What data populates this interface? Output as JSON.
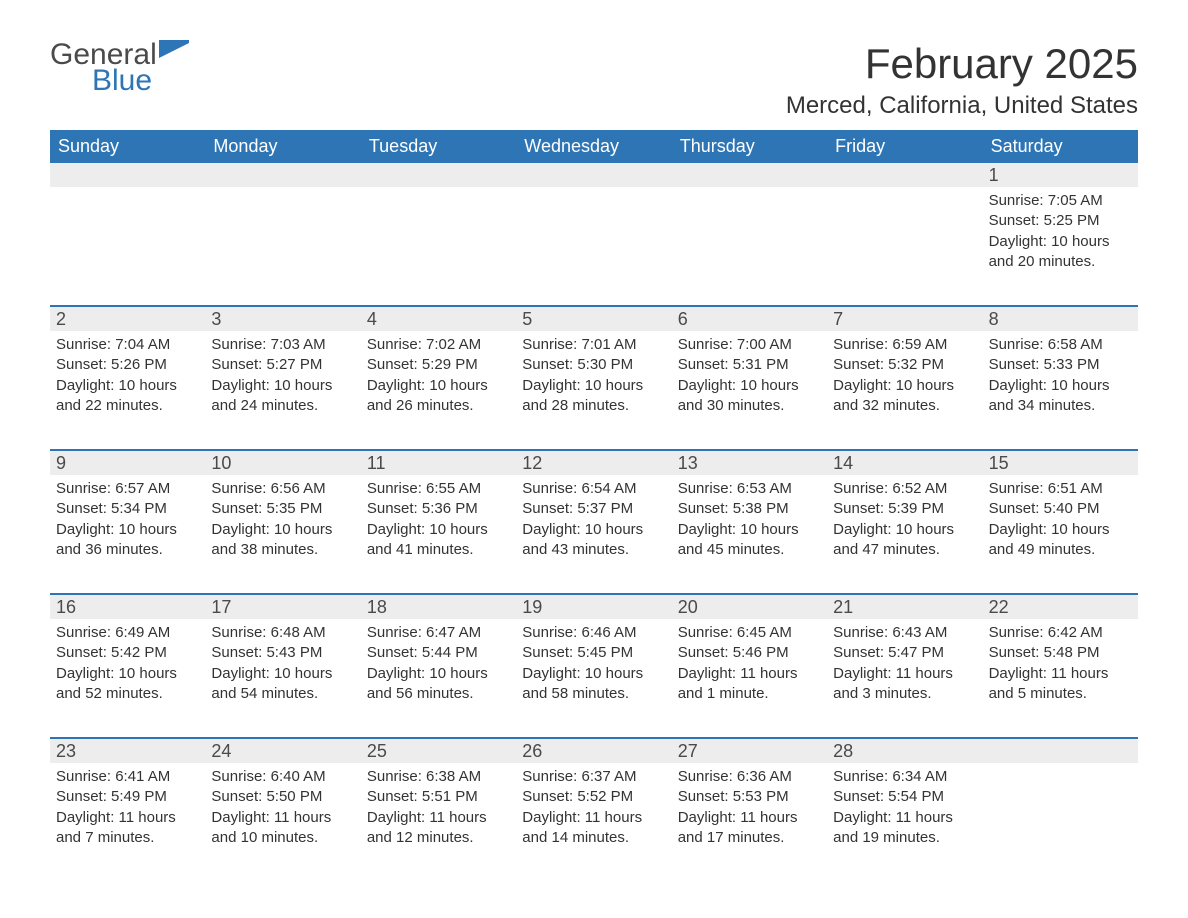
{
  "brand": {
    "general": "General",
    "blue": "Blue",
    "logo_color": "#2e75b6",
    "text_color": "#4a4a4a"
  },
  "header": {
    "month_title": "February 2025",
    "location": "Merced, California, United States"
  },
  "colors": {
    "header_bg": "#2e75b6",
    "header_text": "#ffffff",
    "daynum_bg": "#ededed",
    "border": "#2e75b6",
    "body_text": "#333333",
    "page_bg": "#ffffff"
  },
  "weekdays": [
    "Sunday",
    "Monday",
    "Tuesday",
    "Wednesday",
    "Thursday",
    "Friday",
    "Saturday"
  ],
  "weeks": [
    [
      null,
      null,
      null,
      null,
      null,
      null,
      {
        "n": "1",
        "sunrise": "Sunrise: 7:05 AM",
        "sunset": "Sunset: 5:25 PM",
        "daylight": "Daylight: 10 hours and 20 minutes."
      }
    ],
    [
      {
        "n": "2",
        "sunrise": "Sunrise: 7:04 AM",
        "sunset": "Sunset: 5:26 PM",
        "daylight": "Daylight: 10 hours and 22 minutes."
      },
      {
        "n": "3",
        "sunrise": "Sunrise: 7:03 AM",
        "sunset": "Sunset: 5:27 PM",
        "daylight": "Daylight: 10 hours and 24 minutes."
      },
      {
        "n": "4",
        "sunrise": "Sunrise: 7:02 AM",
        "sunset": "Sunset: 5:29 PM",
        "daylight": "Daylight: 10 hours and 26 minutes."
      },
      {
        "n": "5",
        "sunrise": "Sunrise: 7:01 AM",
        "sunset": "Sunset: 5:30 PM",
        "daylight": "Daylight: 10 hours and 28 minutes."
      },
      {
        "n": "6",
        "sunrise": "Sunrise: 7:00 AM",
        "sunset": "Sunset: 5:31 PM",
        "daylight": "Daylight: 10 hours and 30 minutes."
      },
      {
        "n": "7",
        "sunrise": "Sunrise: 6:59 AM",
        "sunset": "Sunset: 5:32 PM",
        "daylight": "Daylight: 10 hours and 32 minutes."
      },
      {
        "n": "8",
        "sunrise": "Sunrise: 6:58 AM",
        "sunset": "Sunset: 5:33 PM",
        "daylight": "Daylight: 10 hours and 34 minutes."
      }
    ],
    [
      {
        "n": "9",
        "sunrise": "Sunrise: 6:57 AM",
        "sunset": "Sunset: 5:34 PM",
        "daylight": "Daylight: 10 hours and 36 minutes."
      },
      {
        "n": "10",
        "sunrise": "Sunrise: 6:56 AM",
        "sunset": "Sunset: 5:35 PM",
        "daylight": "Daylight: 10 hours and 38 minutes."
      },
      {
        "n": "11",
        "sunrise": "Sunrise: 6:55 AM",
        "sunset": "Sunset: 5:36 PM",
        "daylight": "Daylight: 10 hours and 41 minutes."
      },
      {
        "n": "12",
        "sunrise": "Sunrise: 6:54 AM",
        "sunset": "Sunset: 5:37 PM",
        "daylight": "Daylight: 10 hours and 43 minutes."
      },
      {
        "n": "13",
        "sunrise": "Sunrise: 6:53 AM",
        "sunset": "Sunset: 5:38 PM",
        "daylight": "Daylight: 10 hours and 45 minutes."
      },
      {
        "n": "14",
        "sunrise": "Sunrise: 6:52 AM",
        "sunset": "Sunset: 5:39 PM",
        "daylight": "Daylight: 10 hours and 47 minutes."
      },
      {
        "n": "15",
        "sunrise": "Sunrise: 6:51 AM",
        "sunset": "Sunset: 5:40 PM",
        "daylight": "Daylight: 10 hours and 49 minutes."
      }
    ],
    [
      {
        "n": "16",
        "sunrise": "Sunrise: 6:49 AM",
        "sunset": "Sunset: 5:42 PM",
        "daylight": "Daylight: 10 hours and 52 minutes."
      },
      {
        "n": "17",
        "sunrise": "Sunrise: 6:48 AM",
        "sunset": "Sunset: 5:43 PM",
        "daylight": "Daylight: 10 hours and 54 minutes."
      },
      {
        "n": "18",
        "sunrise": "Sunrise: 6:47 AM",
        "sunset": "Sunset: 5:44 PM",
        "daylight": "Daylight: 10 hours and 56 minutes."
      },
      {
        "n": "19",
        "sunrise": "Sunrise: 6:46 AM",
        "sunset": "Sunset: 5:45 PM",
        "daylight": "Daylight: 10 hours and 58 minutes."
      },
      {
        "n": "20",
        "sunrise": "Sunrise: 6:45 AM",
        "sunset": "Sunset: 5:46 PM",
        "daylight": "Daylight: 11 hours and 1 minute."
      },
      {
        "n": "21",
        "sunrise": "Sunrise: 6:43 AM",
        "sunset": "Sunset: 5:47 PM",
        "daylight": "Daylight: 11 hours and 3 minutes."
      },
      {
        "n": "22",
        "sunrise": "Sunrise: 6:42 AM",
        "sunset": "Sunset: 5:48 PM",
        "daylight": "Daylight: 11 hours and 5 minutes."
      }
    ],
    [
      {
        "n": "23",
        "sunrise": "Sunrise: 6:41 AM",
        "sunset": "Sunset: 5:49 PM",
        "daylight": "Daylight: 11 hours and 7 minutes."
      },
      {
        "n": "24",
        "sunrise": "Sunrise: 6:40 AM",
        "sunset": "Sunset: 5:50 PM",
        "daylight": "Daylight: 11 hours and 10 minutes."
      },
      {
        "n": "25",
        "sunrise": "Sunrise: 6:38 AM",
        "sunset": "Sunset: 5:51 PM",
        "daylight": "Daylight: 11 hours and 12 minutes."
      },
      {
        "n": "26",
        "sunrise": "Sunrise: 6:37 AM",
        "sunset": "Sunset: 5:52 PM",
        "daylight": "Daylight: 11 hours and 14 minutes."
      },
      {
        "n": "27",
        "sunrise": "Sunrise: 6:36 AM",
        "sunset": "Sunset: 5:53 PM",
        "daylight": "Daylight: 11 hours and 17 minutes."
      },
      {
        "n": "28",
        "sunrise": "Sunrise: 6:34 AM",
        "sunset": "Sunset: 5:54 PM",
        "daylight": "Daylight: 11 hours and 19 minutes."
      },
      null
    ]
  ]
}
